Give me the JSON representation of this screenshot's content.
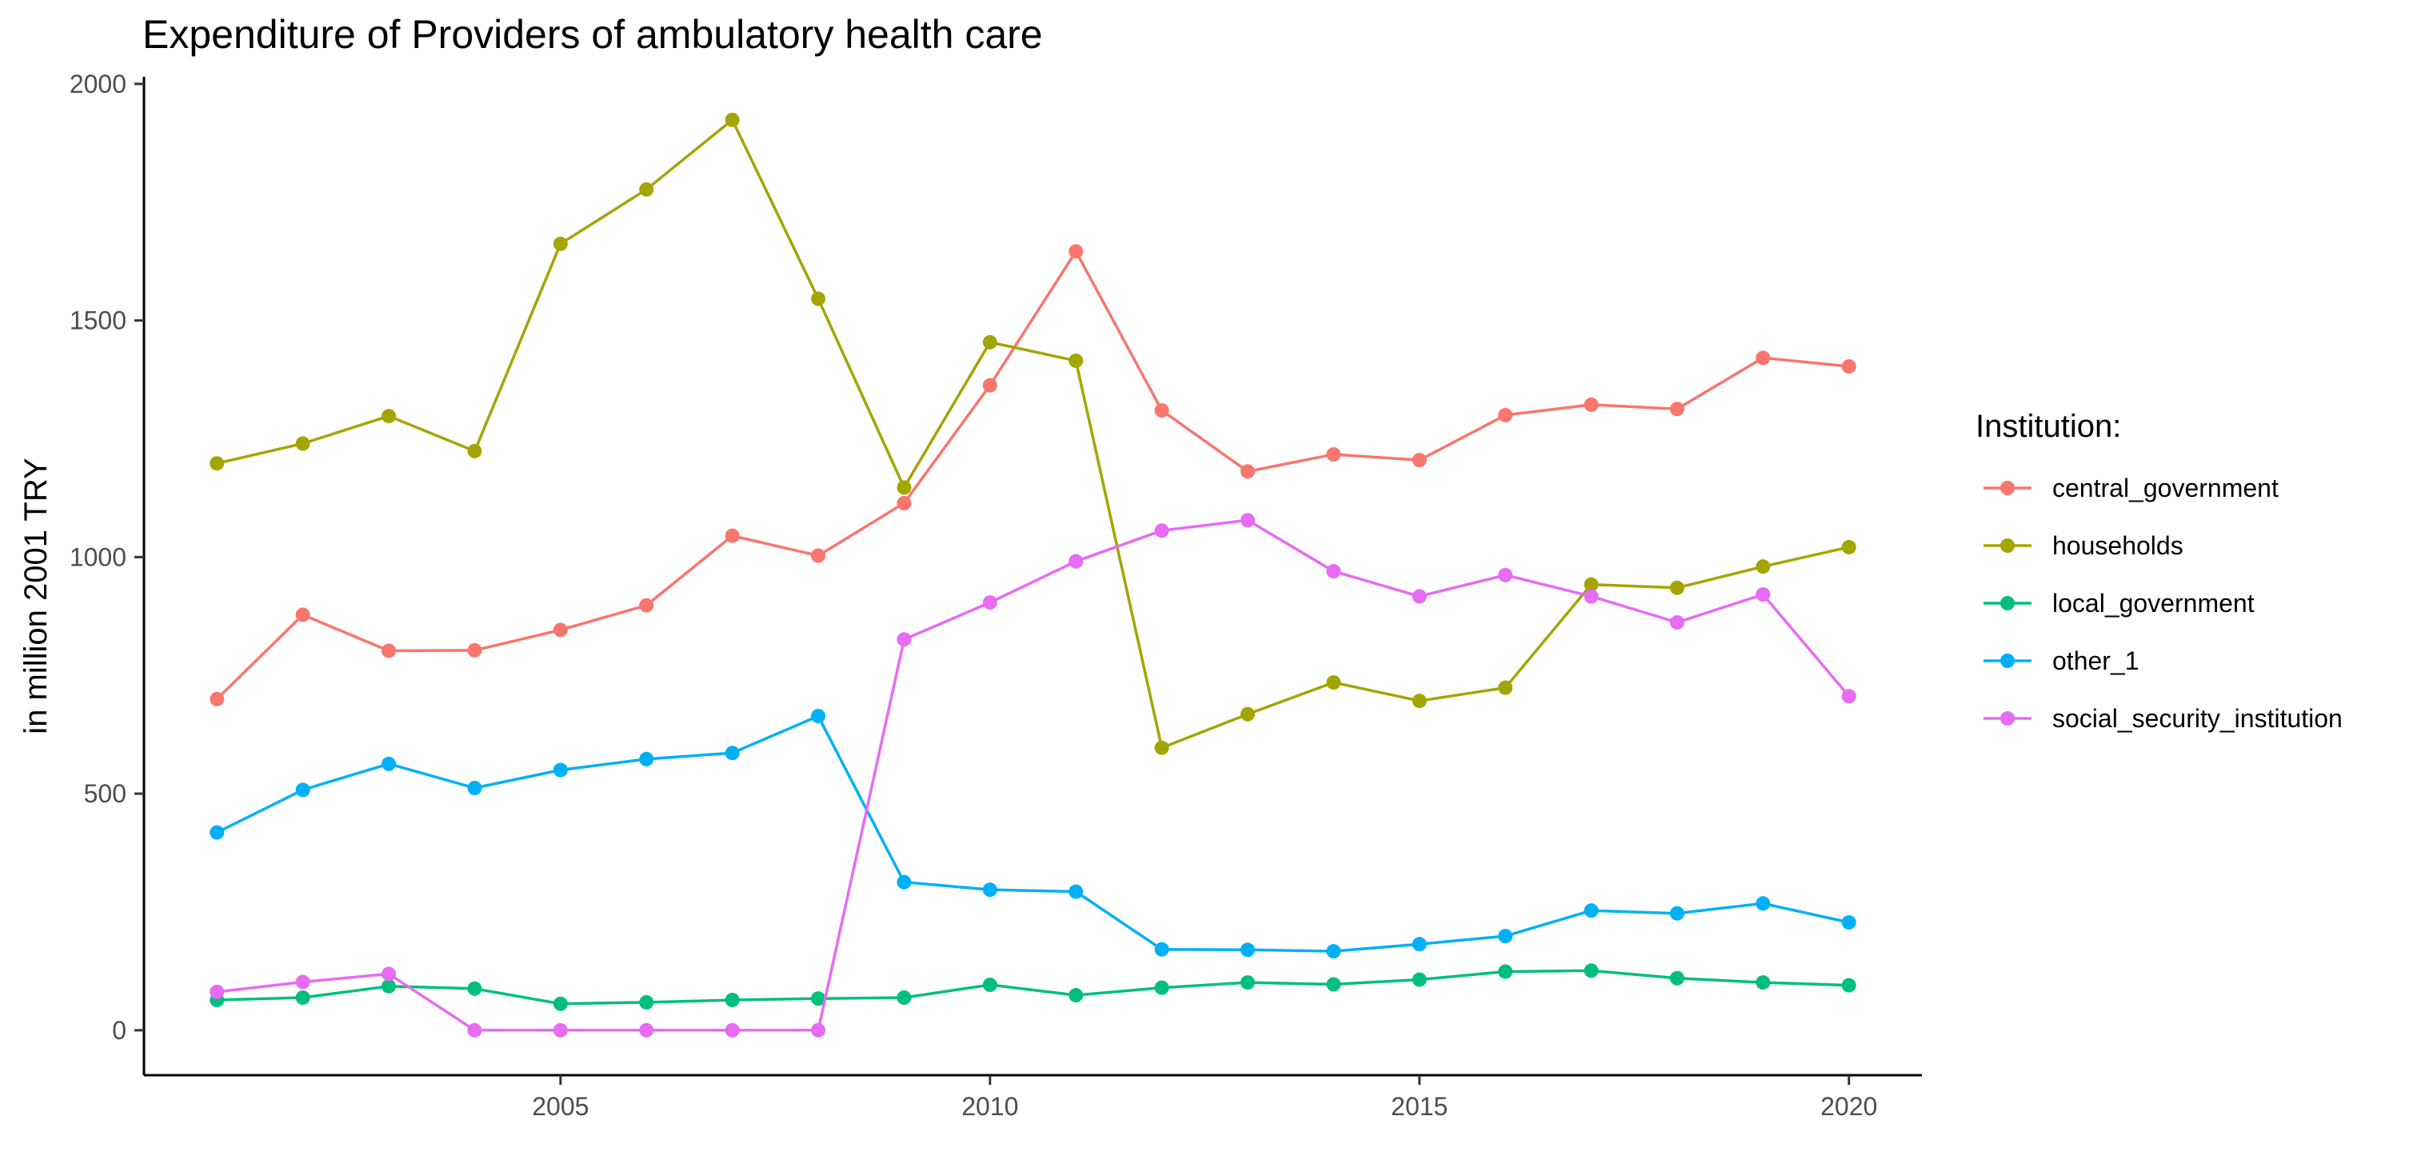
{
  "chart_data": {
    "type": "line",
    "title": "Expenditure of Providers of ambulatory health care",
    "xlabel": "",
    "ylabel": "in million 2001 TRY",
    "xlim": [
      2000.15,
      2020.85
    ],
    "ylim": [
      -95,
      2015
    ],
    "xticks": [
      2005,
      2010,
      2015,
      2020
    ],
    "yticks": [
      0,
      500,
      1000,
      1500,
      2000
    ],
    "grid": false,
    "legend": {
      "title": "Institution:",
      "position": "right"
    },
    "x": [
      2001,
      2002,
      2003,
      2004,
      2005,
      2006,
      2007,
      2008,
      2009,
      2010,
      2011,
      2012,
      2013,
      2014,
      2015,
      2016,
      2017,
      2018,
      2019,
      2020
    ],
    "series": [
      {
        "name": "central_government",
        "color": "#F8766D",
        "values": [
          700,
          878,
          802,
          803,
          846,
          898,
          1045,
          1003,
          1114,
          1363,
          1646,
          1310,
          1181,
          1217,
          1205,
          1300,
          1322,
          1313,
          1421,
          1403
        ]
      },
      {
        "name": "households",
        "color": "#A3A500",
        "values": [
          1198,
          1240,
          1298,
          1224,
          1662,
          1777,
          1924,
          1546,
          1147,
          1454,
          1415,
          597,
          668,
          735,
          696,
          724,
          942,
          935,
          980,
          1021
        ]
      },
      {
        "name": "local_government",
        "color": "#00BF7D",
        "values": [
          64,
          69,
          93,
          88,
          56,
          59,
          64,
          67,
          69,
          96,
          74,
          90,
          101,
          97,
          107,
          124,
          126,
          110,
          101,
          95
        ]
      },
      {
        "name": "other_1",
        "color": "#00B0F6",
        "values": [
          418,
          508,
          563,
          512,
          550,
          573,
          586,
          664,
          313,
          297,
          293,
          171,
          170,
          167,
          182,
          199,
          253,
          247,
          268,
          228
        ]
      },
      {
        "name": "social_security_institution",
        "color": "#E76BF3",
        "values": [
          81,
          102,
          119,
          0,
          0,
          0,
          0,
          0,
          826,
          904,
          991,
          1056,
          1078,
          970,
          917,
          962,
          917,
          862,
          921,
          706
        ]
      }
    ]
  }
}
